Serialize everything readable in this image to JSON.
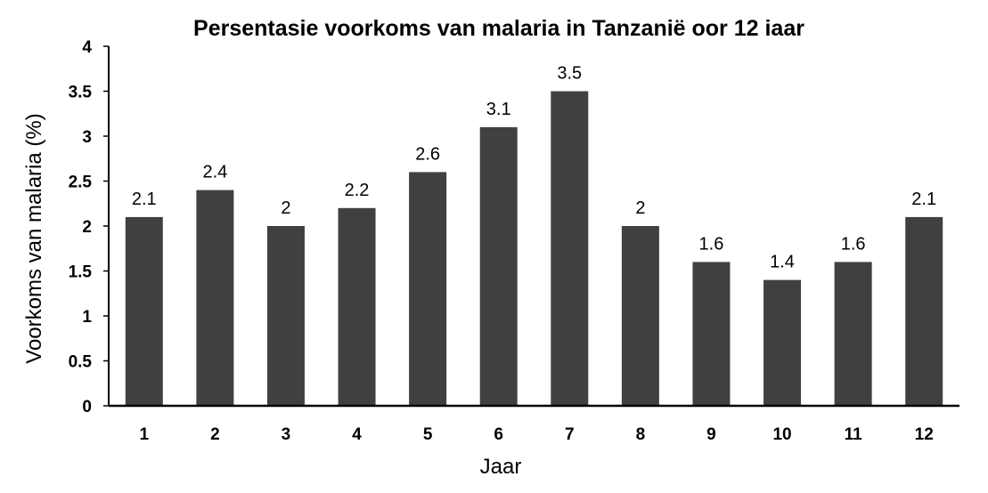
{
  "chart_data": {
    "type": "bar",
    "title": "Persentasie voorkoms van malaria in Tanzanië oor 12 iaar",
    "xlabel": "Jaar",
    "ylabel": "Voorkoms van malaria (%)",
    "categories": [
      "1",
      "2",
      "3",
      "4",
      "5",
      "6",
      "7",
      "8",
      "9",
      "10",
      "11",
      "12"
    ],
    "values": [
      2.1,
      2.4,
      2,
      2.2,
      2.6,
      3.1,
      3.5,
      2,
      1.6,
      1.4,
      1.6,
      2.1
    ],
    "data_labels": [
      "2.1",
      "2.4",
      "2",
      "2.2",
      "2.6",
      "3.1",
      "3.5",
      "2",
      "1.6",
      "1.4",
      "1.6",
      "2.1"
    ],
    "yticks": [
      "0",
      "0.5",
      "1",
      "1.5",
      "2",
      "2.5",
      "3",
      "3.5",
      "4"
    ],
    "ylim": [
      0,
      4
    ],
    "grid": false,
    "legend": "none",
    "bar_color": "#404040"
  }
}
